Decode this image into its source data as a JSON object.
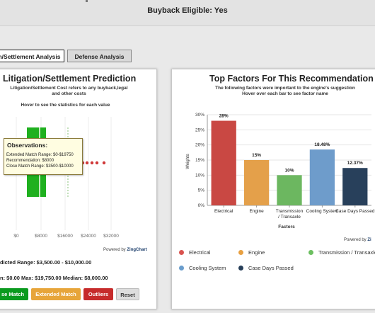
{
  "header": {
    "buyback_label": "Buyback Eligible: Yes"
  },
  "tabs": [
    {
      "label": "n/Settlement Analysis",
      "active": true
    },
    {
      "label": "Defense Analysis",
      "active": false
    }
  ],
  "left_panel": {
    "title": "Litigation/Settlement Prediction",
    "subtitle_line1": "Litigation/Settlement Cost refers to any buyback,legal",
    "subtitle_line2": "and other costs",
    "hover_note": "Hover to see the statistics for each value",
    "tooltip": {
      "title": "Observations:",
      "extended_range": "Extended Match Range: $0-$19750",
      "recommendation": "Recommendation: $8000",
      "close_range": "Close Match Range: $3500-$10000"
    },
    "axis_ticks": [
      "$0",
      "$8000",
      "$16000",
      "$24000",
      "$32000"
    ],
    "powered_by": "Powered by",
    "powered_brand": "ZingChart",
    "predicted_range": "dicted Range:  $3,500.00 - $10,000.00",
    "stats_line": "n:  $0.00   Max:  $19,750.00   Median:  $8,000.00",
    "buttons": {
      "close": "se Match",
      "extended": "Extended Match",
      "outliers": "Outliers",
      "reset": "Reset"
    },
    "colors": {
      "close": "#0a9a1e",
      "extended": "#e7a53a",
      "outliers": "#c62b2b",
      "reset": "#dddddd",
      "box": "#22b022",
      "outlier_dot": "#d03a3a"
    }
  },
  "right_panel": {
    "title": "Top Factors For This Recommendation",
    "subtitle_line1": "The following factors were important to the engine's suggestion",
    "subtitle_line2": "Hover over each bar to see factor name",
    "powered_by": "Powered by",
    "powered_brand": "Zi",
    "legend": [
      {
        "label": "Electrical",
        "color": "#d9534f"
      },
      {
        "label": "Engine",
        "color": "#e8a040"
      },
      {
        "label": "Transmission / Transaxle",
        "color": "#6cbf60"
      },
      {
        "label": "Cooling System",
        "color": "#6a9dcc"
      },
      {
        "label": "Case Days Passed",
        "color": "#263e58"
      }
    ]
  },
  "chart_data": {
    "type": "bar",
    "title": "Top Factors For This Recommendation",
    "categories": [
      "Electrical",
      "Engine",
      "Transmission / Transaxle",
      "Cooling System",
      "Case Days Passed"
    ],
    "values": [
      28,
      15,
      10,
      18.48,
      12.37
    ],
    "data_labels": [
      "28%",
      "15%",
      "10%",
      "18.48%",
      "12.37%"
    ],
    "colors": [
      "#c94843",
      "#e4a04a",
      "#6cb760",
      "#6e9ccb",
      "#28405b"
    ],
    "xlabel": "Factors",
    "ylabel": "Weights",
    "ylim": [
      0,
      30
    ],
    "yticks": [
      "0%",
      "5%",
      "10%",
      "15%",
      "20%",
      "25%",
      "30%"
    ],
    "grid": true,
    "legend_position": "bottom"
  }
}
